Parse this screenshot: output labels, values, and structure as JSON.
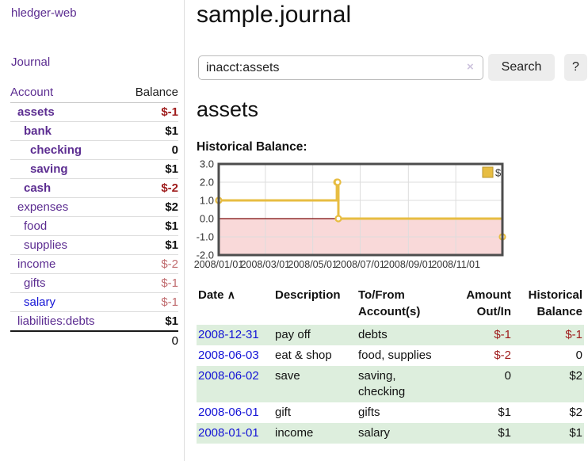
{
  "app": {
    "brand": "hledger-web"
  },
  "sidebar": {
    "nav_journal": "Journal",
    "accounts": {
      "col_account": "Account",
      "col_balance": "Balance",
      "rows": [
        {
          "name": "assets",
          "depth": 1,
          "bold": true,
          "balance": "$-1",
          "balance_style": "neg-strong",
          "link_style": "purple"
        },
        {
          "name": "bank",
          "depth": 2,
          "bold": true,
          "balance": "$1",
          "balance_style": "",
          "link_style": "purple"
        },
        {
          "name": "checking",
          "depth": 3,
          "bold": true,
          "balance": "0",
          "balance_style": "",
          "link_style": "purple"
        },
        {
          "name": "saving",
          "depth": 3,
          "bold": true,
          "balance": "$1",
          "balance_style": "",
          "link_style": "purple"
        },
        {
          "name": "cash",
          "depth": 2,
          "bold": true,
          "balance": "$-2",
          "balance_style": "neg-strong",
          "link_style": "purple"
        },
        {
          "name": "expenses",
          "depth": 1,
          "bold": false,
          "balance": "$2",
          "balance_style": "",
          "link_style": "purple"
        },
        {
          "name": "food",
          "depth": 2,
          "bold": false,
          "balance": "$1",
          "balance_style": "",
          "link_style": "purple"
        },
        {
          "name": "supplies",
          "depth": 2,
          "bold": false,
          "balance": "$1",
          "balance_style": "",
          "link_style": "purple"
        },
        {
          "name": "income",
          "depth": 1,
          "bold": false,
          "balance": "$-2",
          "balance_style": "neg-soft",
          "link_style": "purple"
        },
        {
          "name": "gifts",
          "depth": 2,
          "bold": false,
          "balance": "$-1",
          "balance_style": "neg-soft",
          "link_style": "purple"
        },
        {
          "name": "salary",
          "depth": 2,
          "bold": false,
          "balance": "$-1",
          "balance_style": "neg-soft",
          "link_style": "blue"
        },
        {
          "name": "liabilities:debts",
          "depth": 1,
          "bold": false,
          "balance": "$1",
          "balance_style": "",
          "link_style": "purple"
        }
      ],
      "total": "0"
    }
  },
  "main": {
    "title": "sample.journal",
    "search": {
      "value": "inacct:assets",
      "clear_icon": "×",
      "search_button": "Search",
      "help_button": "?"
    },
    "account_heading": "assets",
    "chart_title": "Historical Balance:"
  },
  "chart_data": {
    "type": "line",
    "step": true,
    "title": "Historical Balance:",
    "series": [
      {
        "name": "$",
        "color": "#e7bd42",
        "points": [
          [
            "2008-01-01",
            1
          ],
          [
            "2008-06-01",
            2
          ],
          [
            "2008-06-02",
            2
          ],
          [
            "2008-06-03",
            0
          ],
          [
            "2008-12-31",
            -1
          ]
        ]
      }
    ],
    "x_domain": [
      "2008-01-01",
      "2008-12-31"
    ],
    "x_tick_labels": [
      "2008/01/01",
      "2008/03/01",
      "2008/05/01",
      "2008/07/01",
      "2008/09/01",
      "2008/11/01"
    ],
    "y_ticks": [
      3.0,
      2.0,
      1.0,
      0.0,
      -1.0,
      -2.0
    ],
    "ylim": [
      -2,
      3
    ],
    "grid": true,
    "legend": {
      "label": "$",
      "position": "top-right"
    },
    "negative_region_color": "#f9d9d9",
    "zero_line_color": "#7c0a0a"
  },
  "register": {
    "headers": {
      "date": "Date",
      "sort_icon": "∧",
      "description": "Description",
      "account_lines": [
        "To/From",
        "Account(s)"
      ],
      "amount_lines": [
        "Amount",
        "Out/In"
      ],
      "balance_lines": [
        "Historical",
        "Balance"
      ]
    },
    "rows": [
      {
        "date": "2008-12-31",
        "description": "pay off",
        "accounts": [
          "debts"
        ],
        "amount": "$-1",
        "amount_neg": true,
        "balance": "$-1",
        "balance_neg": true,
        "shaded": true
      },
      {
        "date": "2008-06-03",
        "description": "eat & shop",
        "accounts": [
          "food, supplies"
        ],
        "amount": "$-2",
        "amount_neg": true,
        "balance": "0",
        "balance_neg": false,
        "shaded": false
      },
      {
        "date": "2008-06-02",
        "description": "save",
        "accounts": [
          "saving,",
          "checking"
        ],
        "amount": "0",
        "amount_neg": false,
        "balance": "$2",
        "balance_neg": false,
        "shaded": true
      },
      {
        "date": "2008-06-01",
        "description": "gift",
        "accounts": [
          "gifts"
        ],
        "amount": "$1",
        "amount_neg": false,
        "balance": "$2",
        "balance_neg": false,
        "shaded": false
      },
      {
        "date": "2008-01-01",
        "description": "income",
        "accounts": [
          "salary"
        ],
        "amount": "$1",
        "amount_neg": false,
        "balance": "$1",
        "balance_neg": false,
        "shaded": true
      }
    ]
  },
  "colors": {
    "link_purple": "#5c2d91",
    "link_blue": "#1414d6",
    "negative_strong": "#9e1a1a",
    "negative_soft": "#c06b6e",
    "row_stripe_green": "#ddeedd",
    "chart_line_gold": "#e7bd42",
    "chart_negative_region": "#f9d9d9",
    "chart_zero_line": "#7c0a0a"
  }
}
